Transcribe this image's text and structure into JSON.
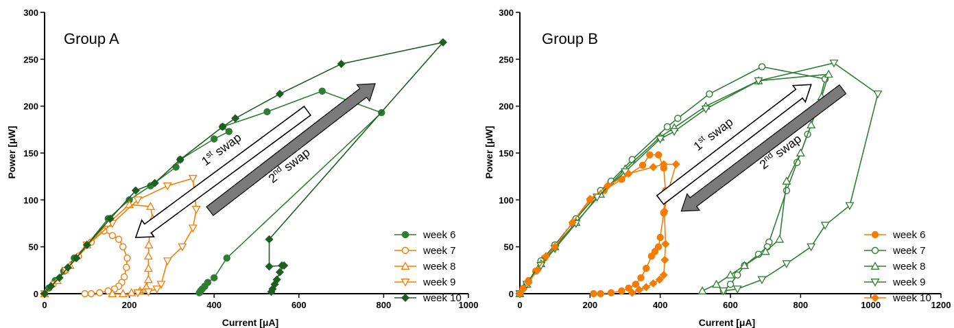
{
  "chart_data": [
    {
      "type": "line",
      "title": "Group A",
      "xlabel": "Current [μA]",
      "ylabel": "Power [μW]",
      "xlim": [
        0,
        1000
      ],
      "ylim": [
        0,
        300
      ],
      "xticks": [
        "0",
        "200",
        "400",
        "600",
        "800",
        "1000"
      ],
      "yticks": [
        "0",
        "50",
        "100",
        "150",
        "200",
        "250",
        "300"
      ],
      "legend_position": "bottom-right",
      "annotations": [
        {
          "text": "1st swap",
          "style": "hollow-arrow",
          "direction": "down-left",
          "from": [
            620,
            195
          ],
          "to": [
            215,
            60
          ]
        },
        {
          "text": "2nd swap",
          "style": "gray-arrow",
          "direction": "up-right",
          "from": [
            390,
            88
          ],
          "to": [
            780,
            224
          ]
        }
      ],
      "series": [
        {
          "name": "week 6",
          "color": "#2e7d32",
          "marker": "circle-filled",
          "points": [
            [
              0,
              0
            ],
            [
              10,
              6
            ],
            [
              25,
              14
            ],
            [
              45,
              24
            ],
            [
              70,
              38
            ],
            [
              100,
              52
            ],
            [
              150,
              80
            ],
            [
              200,
              100
            ],
            [
              250,
              115
            ],
            [
              310,
              135
            ],
            [
              320,
              143
            ],
            [
              400,
              165
            ],
            [
              435,
              173
            ],
            [
              420,
              178
            ],
            [
              525,
              194
            ],
            [
              655,
              216
            ],
            [
              795,
              193
            ],
            [
              430,
              38
            ],
            [
              400,
              17
            ],
            [
              385,
              12
            ],
            [
              378,
              8
            ],
            [
              372,
              5
            ],
            [
              368,
              3
            ],
            [
              365,
              1
            ]
          ]
        },
        {
          "name": "week 7",
          "color": "#f57c00",
          "marker": "circle-open",
          "points": [
            [
              0,
              0
            ],
            [
              20,
              10
            ],
            [
              50,
              25
            ],
            [
              80,
              40
            ],
            [
              110,
              55
            ],
            [
              140,
              67
            ],
            [
              160,
              62
            ],
            [
              175,
              58
            ],
            [
              185,
              50
            ],
            [
              195,
              38
            ],
            [
              193,
              28
            ],
            [
              188,
              18
            ],
            [
              182,
              12
            ],
            [
              175,
              8
            ],
            [
              165,
              5
            ],
            [
              150,
              3
            ],
            [
              130,
              1
            ],
            [
              110,
              0
            ],
            [
              95,
              0
            ]
          ]
        },
        {
          "name": "week 8",
          "color": "#f57c00",
          "marker": "triangle-up-open",
          "points": [
            [
              0,
              0
            ],
            [
              30,
              14
            ],
            [
              60,
              30
            ],
            [
              100,
              52
            ],
            [
              150,
              75
            ],
            [
              200,
              95
            ],
            [
              250,
              93
            ],
            [
              255,
              80
            ],
            [
              248,
              65
            ],
            [
              246,
              52
            ],
            [
              245,
              40
            ],
            [
              245,
              27
            ],
            [
              245,
              15
            ],
            [
              240,
              7
            ],
            [
              225,
              3
            ],
            [
              205,
              1
            ],
            [
              185,
              0
            ],
            [
              160,
              0
            ]
          ]
        },
        {
          "name": "week 9",
          "color": "#f57c00",
          "marker": "triangle-down-open",
          "points": [
            [
              0,
              0
            ],
            [
              50,
              25
            ],
            [
              100,
              52
            ],
            [
              160,
              75
            ],
            [
              220,
              100
            ],
            [
              290,
              115
            ],
            [
              350,
              123
            ],
            [
              358,
              90
            ],
            [
              350,
              70
            ],
            [
              325,
              50
            ],
            [
              290,
              35
            ],
            [
              275,
              10
            ],
            [
              265,
              5
            ],
            [
              245,
              2
            ],
            [
              220,
              1
            ]
          ]
        },
        {
          "name": "week 10",
          "color": "#1b5e20",
          "marker": "diamond-filled",
          "points": [
            [
              0,
              0
            ],
            [
              15,
              8
            ],
            [
              35,
              17
            ],
            [
              55,
              28
            ],
            [
              75,
              38
            ],
            [
              100,
              52
            ],
            [
              155,
              80
            ],
            [
              215,
              110
            ],
            [
              260,
              118
            ],
            [
              320,
              143
            ],
            [
              420,
              178
            ],
            [
              450,
              187
            ],
            [
              555,
              213
            ],
            [
              700,
              245
            ],
            [
              940,
              268
            ],
            [
              530,
              58
            ],
            [
              530,
              29
            ],
            [
              560,
              30
            ],
            [
              565,
              30
            ],
            [
              555,
              23
            ],
            [
              548,
              15
            ],
            [
              543,
              10
            ],
            [
              538,
              5
            ],
            [
              535,
              2
            ]
          ]
        }
      ]
    },
    {
      "type": "line",
      "title": "Group B",
      "xlabel": "Current [μA]",
      "ylabel": "Power [μW]",
      "xlim": [
        0,
        1200
      ],
      "ylim": [
        0,
        300
      ],
      "xticks": [
        "0",
        "200",
        "400",
        "600",
        "800",
        "1000",
        "1200"
      ],
      "yticks": [
        "0",
        "50",
        "100",
        "150",
        "200",
        "250",
        "300"
      ],
      "legend_position": "bottom-right",
      "annotations": [
        {
          "text": "1st swap",
          "style": "hollow-arrow",
          "direction": "up-right",
          "from": [
            400,
            100
          ],
          "to": [
            830,
            223
          ]
        },
        {
          "text": "2nd swap",
          "style": "gray-arrow",
          "direction": "down-left",
          "from": [
            920,
            218
          ],
          "to": [
            460,
            88
          ]
        }
      ],
      "series": [
        {
          "name": "week 6",
          "color": "#f57c00",
          "marker": "circle-filled",
          "points": [
            [
              0,
              0
            ],
            [
              10,
              6
            ],
            [
              25,
              14
            ],
            [
              45,
              24
            ],
            [
              70,
              38
            ],
            [
              100,
              52
            ],
            [
              150,
              75
            ],
            [
              200,
              100
            ],
            [
              240,
              110
            ],
            [
              290,
              122
            ],
            [
              350,
              137
            ],
            [
              370,
              148
            ],
            [
              395,
              148
            ],
            [
              410,
              134
            ],
            [
              415,
              110
            ],
            [
              410,
              86
            ],
            [
              400,
              60
            ],
            [
              395,
              50
            ],
            [
              385,
              45
            ],
            [
              375,
              40
            ],
            [
              360,
              27
            ],
            [
              345,
              17
            ],
            [
              330,
              10
            ],
            [
              310,
              6
            ],
            [
              290,
              3
            ],
            [
              260,
              1
            ],
            [
              230,
              0
            ],
            [
              210,
              0
            ]
          ]
        },
        {
          "name": "week 7",
          "color": "#2e7d32",
          "marker": "circle-open",
          "points": [
            [
              0,
              0
            ],
            [
              20,
              10
            ],
            [
              60,
              35
            ],
            [
              100,
              52
            ],
            [
              160,
              80
            ],
            [
              230,
              110
            ],
            [
              260,
              120
            ],
            [
              320,
              143
            ],
            [
              420,
              178
            ],
            [
              450,
              187
            ],
            [
              540,
              213
            ],
            [
              690,
              242
            ],
            [
              870,
              229
            ],
            [
              850,
              200
            ],
            [
              820,
              170
            ],
            [
              790,
              140
            ],
            [
              760,
              110
            ],
            [
              710,
              55
            ],
            [
              705,
              50
            ],
            [
              680,
              42
            ],
            [
              640,
              30
            ],
            [
              620,
              20
            ],
            [
              600,
              10
            ],
            [
              580,
              3
            ]
          ]
        },
        {
          "name": "week 8",
          "color": "#2e7d32",
          "marker": "triangle-up-open",
          "points": [
            [
              0,
              0
            ],
            [
              20,
              10
            ],
            [
              60,
              32
            ],
            [
              100,
              50
            ],
            [
              160,
              76
            ],
            [
              230,
              106
            ],
            [
              300,
              133
            ],
            [
              400,
              167
            ],
            [
              440,
              177
            ],
            [
              530,
              200
            ],
            [
              680,
              227
            ],
            [
              880,
              234
            ],
            [
              860,
              210
            ],
            [
              830,
              180
            ],
            [
              800,
              150
            ],
            [
              760,
              120
            ],
            [
              740,
              58
            ],
            [
              700,
              45
            ],
            [
              640,
              30
            ],
            [
              600,
              20
            ],
            [
              560,
              10
            ],
            [
              520,
              3
            ]
          ]
        },
        {
          "name": "week 9",
          "color": "#2e7d32",
          "marker": "triangle-down-open",
          "points": [
            [
              0,
              0
            ],
            [
              20,
              10
            ],
            [
              60,
              30
            ],
            [
              100,
              48
            ],
            [
              160,
              75
            ],
            [
              220,
              103
            ],
            [
              300,
              130
            ],
            [
              400,
              165
            ],
            [
              440,
              173
            ],
            [
              530,
              197
            ],
            [
              680,
              227
            ],
            [
              895,
              246
            ],
            [
              1020,
              213
            ],
            [
              940,
              94
            ],
            [
              870,
              73
            ],
            [
              830,
              50
            ],
            [
              760,
              32
            ],
            [
              690,
              15
            ],
            [
              620,
              5
            ],
            [
              580,
              3
            ]
          ]
        },
        {
          "name": "week 10",
          "color": "#f57c00",
          "marker": "diamond-filled",
          "points": [
            [
              0,
              0
            ],
            [
              10,
              5
            ],
            [
              25,
              12
            ],
            [
              50,
              25
            ],
            [
              75,
              40
            ],
            [
              100,
              50
            ],
            [
              150,
              76
            ],
            [
              200,
              101
            ],
            [
              250,
              115
            ],
            [
              310,
              128
            ],
            [
              380,
              135
            ],
            [
              410,
              138
            ],
            [
              445,
              138
            ],
            [
              420,
              106
            ],
            [
              412,
              88
            ],
            [
              415,
              53
            ],
            [
              413,
              36
            ],
            [
              410,
              20
            ],
            [
              398,
              15
            ],
            [
              380,
              11
            ],
            [
              360,
              7
            ],
            [
              340,
              4
            ],
            [
              320,
              1
            ]
          ]
        }
      ]
    }
  ]
}
